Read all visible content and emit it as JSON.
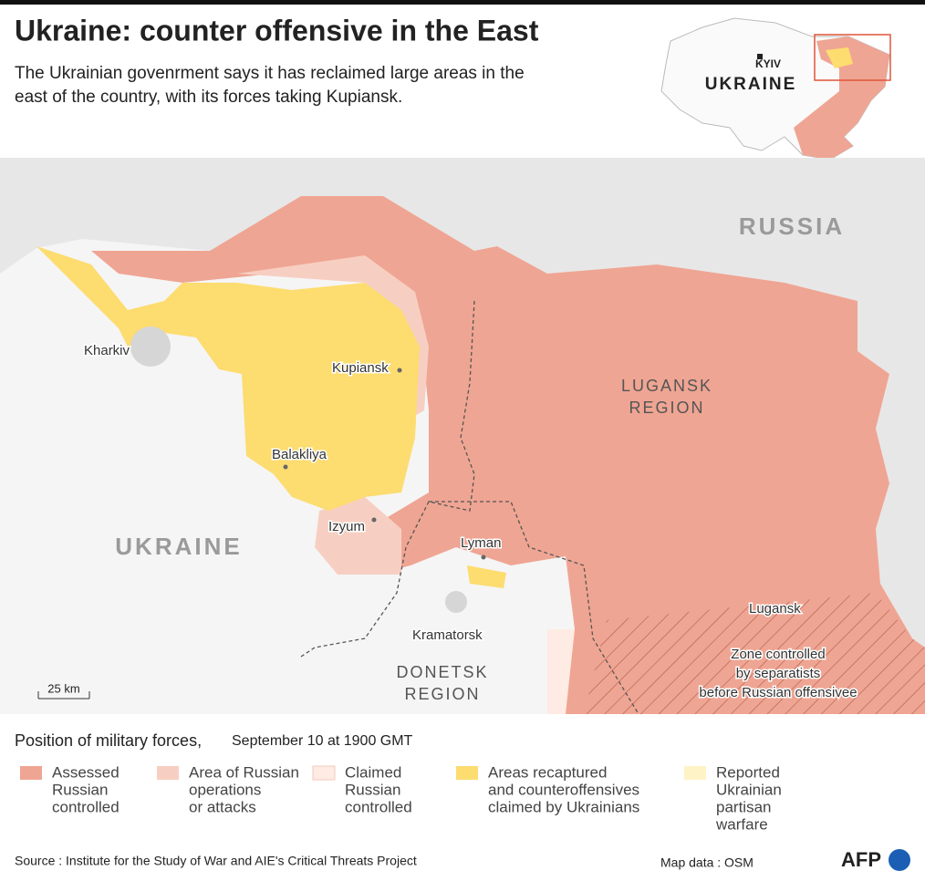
{
  "header": {
    "title": "Ukraine: counter offensive in the East",
    "subtitle": [
      "The Ukrainian govenrment says it has reclaimed large areas in the",
      "east of the country, with its forces taking Kupiansk."
    ]
  },
  "inset": {
    "capital": "KYIV",
    "country": "UKRAINE"
  },
  "map": {
    "country_labels": {
      "russia": "RUSSIA",
      "ukraine": "UKRAINE"
    },
    "region_labels": {
      "lugansk": [
        "LUGANSK",
        "REGION"
      ],
      "donetsk": [
        "DONETSK",
        "REGION"
      ]
    },
    "cities": [
      "Kharkiv",
      "Kupiansk",
      "Balakliya",
      "Izyum",
      "Lyman",
      "Kramatorsk",
      "Lugansk"
    ],
    "zone_note": [
      "Zone controlled",
      "by separatists",
      "before Russian offensivee"
    ],
    "scale": "25 km"
  },
  "legend": {
    "title": "Position of military forces,",
    "date": "September 10 at 1900 GMT",
    "items": [
      {
        "lines": [
          "Assessed",
          "Russian",
          "controlled"
        ],
        "color": "#efa593"
      },
      {
        "lines": [
          "Area of Russian",
          "operations",
          "or attacks"
        ],
        "color": "#f7cfc2"
      },
      {
        "lines": [
          "Claimed",
          "Russian",
          "controlled"
        ],
        "color": "#fdebe4"
      },
      {
        "lines": [
          "Areas recaptured",
          "and counteroffensives",
          "claimed by Ukrainians"
        ],
        "color": "#fddc70"
      },
      {
        "lines": [
          "Reported",
          "Ukrainian",
          "partisan",
          "warfare"
        ],
        "color": "#fef3c6"
      }
    ]
  },
  "footer": {
    "source": "Source : Institute for the Study of War and AIE's Critical Threats Project",
    "map_data": "Map data : OSM",
    "logo": "AFP"
  }
}
